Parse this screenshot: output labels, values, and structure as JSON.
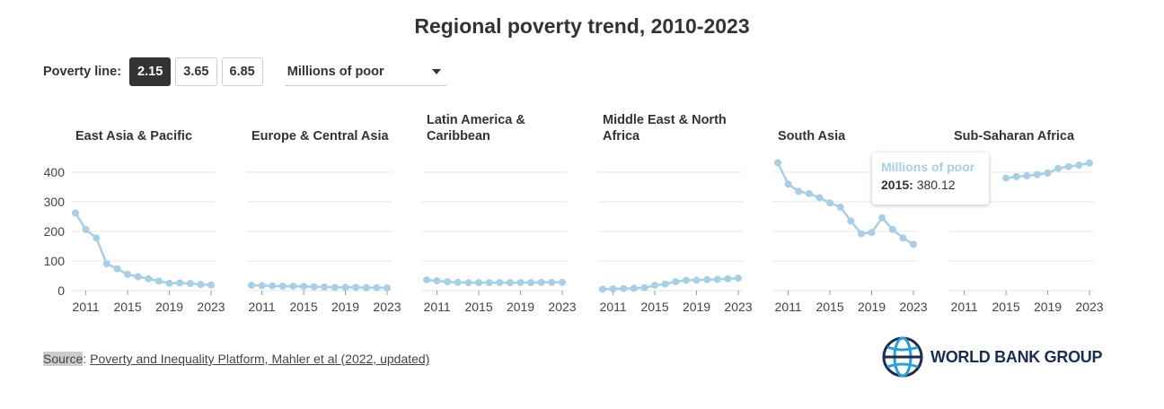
{
  "title": "Regional poverty trend, 2010-2023",
  "controls": {
    "poverty_line_label": "Poverty line:",
    "options": [
      "2.15",
      "3.65",
      "6.85"
    ],
    "active": "2.15",
    "metric": "Millions of poor"
  },
  "source": {
    "key": "Source",
    "text": "Poverty and Inequality Platform, Mahler et al (2022, updated)"
  },
  "logo_text": "WORLD BANK GROUP",
  "tooltip": {
    "title": "Millions of poor",
    "year": "2015:",
    "value": "380.12"
  },
  "colors": {
    "series": "#a8cfe3",
    "active_button": "#333333",
    "grid": "#e6e6e6"
  },
  "chart_data": {
    "type": "line",
    "xlim": [
      2010,
      2023
    ],
    "ylim": [
      0,
      430
    ],
    "yticks": [
      0,
      100,
      200,
      300,
      400
    ],
    "xticks": [
      2011,
      2015,
      2019,
      2023
    ],
    "series": [
      {
        "name": "East Asia & Pacific",
        "title_lines": [
          "East Asia & Pacific"
        ],
        "values": [
          262,
          206,
          178,
          91,
          74,
          55,
          47,
          40,
          32,
          25,
          26,
          24,
          21,
          19
        ]
      },
      {
        "name": "Europe & Central Asia",
        "title_lines": [
          "Europe & Central Asia"
        ],
        "values": [
          18,
          17,
          16,
          15,
          15,
          14,
          13,
          12,
          11,
          11,
          11,
          10,
          10,
          9
        ]
      },
      {
        "name": "Latin America & Caribbean",
        "title_lines": [
          "Latin America &",
          "Caribbean"
        ],
        "values": [
          36,
          33,
          30,
          28,
          27,
          27,
          27,
          27,
          27,
          27,
          27,
          28,
          28,
          28
        ]
      },
      {
        "name": "Middle East & North Africa",
        "title_lines": [
          "Middle East & North",
          "Africa"
        ],
        "values": [
          5,
          6,
          7,
          8,
          10,
          18,
          22,
          30,
          35,
          35,
          37,
          38,
          40,
          42
        ]
      },
      {
        "name": "South Asia",
        "title_lines": [
          "South Asia"
        ],
        "values": [
          432,
          360,
          335,
          328,
          314,
          296,
          282,
          235,
          192,
          196,
          246,
          207,
          178,
          156
        ]
      },
      {
        "name": "Sub-Saharan Africa",
        "title_lines": [
          "Sub-Saharan Africa"
        ],
        "values": [
          null,
          null,
          null,
          null,
          null,
          380.12,
          385,
          388,
          392,
          397,
          413,
          419,
          424,
          431
        ]
      }
    ]
  }
}
